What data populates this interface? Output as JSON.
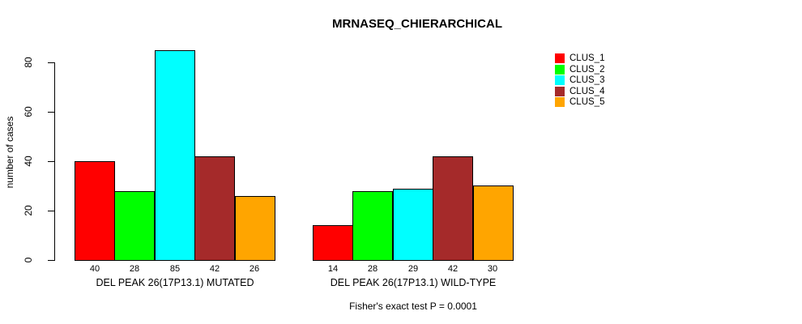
{
  "chart_data": {
    "type": "bar",
    "title": "MRNASEQ_CHIERARCHICAL",
    "xlabel": "",
    "ylabel": "number of cases",
    "ylim": [
      0,
      85
    ],
    "yticks": [
      0,
      20,
      40,
      60,
      80
    ],
    "grid": false,
    "legend_position": "top-right",
    "bar_value_labels": true,
    "categories": [
      "DEL PEAK 26(17P13.1) MUTATED",
      "DEL PEAK 26(17P13.1) WILD-TYPE"
    ],
    "series": [
      {
        "name": "CLUS_1",
        "color": "#FF0000",
        "values": [
          40,
          14
        ]
      },
      {
        "name": "CLUS_2",
        "color": "#00FF00",
        "values": [
          28,
          28
        ]
      },
      {
        "name": "CLUS_3",
        "color": "#00FFFF",
        "values": [
          85,
          29
        ]
      },
      {
        "name": "CLUS_4",
        "color": "#A52A2A",
        "values": [
          42,
          42
        ]
      },
      {
        "name": "CLUS_5",
        "color": "#FFA500",
        "values": [
          26,
          30
        ]
      }
    ],
    "footer": "Fisher's exact test P = 0.0001"
  }
}
